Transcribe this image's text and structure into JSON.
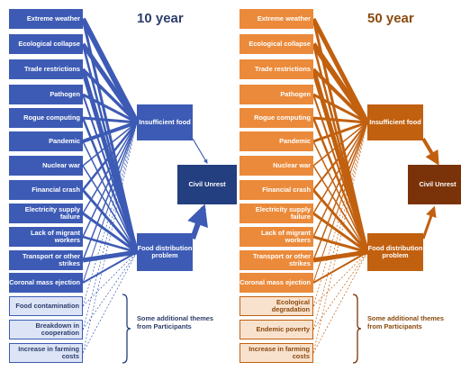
{
  "panels": [
    {
      "title": "10 year",
      "colors": {
        "dark": "#243F7F",
        "mid": "#3D5BB5",
        "light": "#DCE4F6",
        "title": "#2E3E6B"
      },
      "causes": [
        "Extreme weather",
        "Ecological collapse",
        "Trade restrictions",
        "Pathogen",
        "Rogue computing",
        "Pandemic",
        "Nuclear war",
        "Financial crash",
        "Electricity supply failure",
        "Lack of migrant workers",
        "Transport or other strikes",
        "Coronal mass ejection"
      ],
      "extra_themes": [
        "Food contamination",
        "Breakdown in cooperation",
        "Increase in farming costs"
      ],
      "intermediate": [
        "Insufficient food",
        "Food distribution problem"
      ],
      "outcome": "Civil Unrest",
      "note": "Some additional themes from Participants"
    },
    {
      "title": "50 year",
      "colors": {
        "dark": "#7A3308",
        "mid": "#C1600F",
        "light": "#F9E2CD",
        "title": "#8A4A0E",
        "box": "#EB8A3A"
      },
      "causes": [
        "Extreme weather",
        "Ecological collapse",
        "Trade restrictions",
        "Pathogen",
        "Rogue computing",
        "Pandemic",
        "Nuclear war",
        "Financial crash",
        "Electricity supply failure",
        "Lack of migrant workers",
        "Transport or other strikes",
        "Coronal mass ejection"
      ],
      "extra_themes": [
        "Ecological degradation",
        "Endemic poverty",
        "Increase in farming costs"
      ],
      "intermediate": [
        "Insufficient food",
        "Food distribution problem"
      ],
      "outcome": "Civil Unrest",
      "note": "Some additional themes from Participants"
    }
  ]
}
